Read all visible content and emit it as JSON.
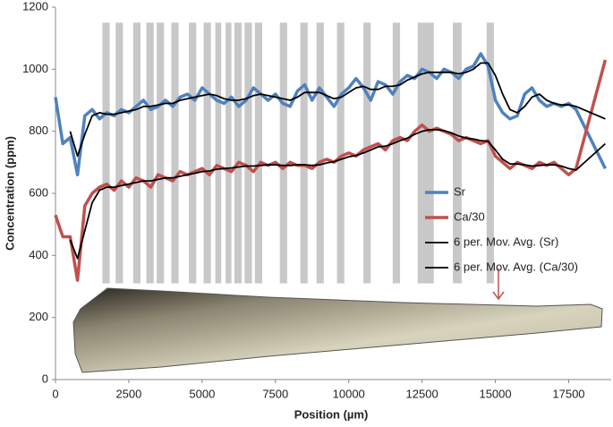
{
  "chart_data": {
    "type": "line",
    "y_label": "Concentration (ppm)",
    "x_label": "Position (µm)",
    "xlim": [
      0,
      18950
    ],
    "ylim": [
      0,
      1200
    ],
    "xticks": [
      0,
      2500,
      5000,
      7500,
      10000,
      12500,
      15000,
      17500
    ],
    "yticks": [
      0,
      200,
      400,
      600,
      800,
      1000,
      1200
    ],
    "band_color": "#c8c8c8",
    "band_yrange": [
      310,
      1150
    ],
    "bands": [
      [
        1600,
        1850
      ],
      [
        2050,
        2300
      ],
      [
        2650,
        2900
      ],
      [
        3100,
        3350
      ],
      [
        3450,
        3700
      ],
      [
        3950,
        4200
      ],
      [
        4550,
        4800
      ],
      [
        5050,
        5300
      ],
      [
        5450,
        5650
      ],
      [
        5800,
        6000
      ],
      [
        6100,
        6350
      ],
      [
        6450,
        6700
      ],
      [
        6800,
        7050
      ],
      [
        7650,
        7900
      ],
      [
        8350,
        8600
      ],
      [
        8900,
        9150
      ],
      [
        9600,
        9850
      ],
      [
        10500,
        10750
      ],
      [
        11500,
        11750
      ],
      [
        12350,
        12900
      ],
      [
        13550,
        13850
      ],
      [
        14700,
        14950
      ]
    ],
    "legend": "right",
    "x": [
      0,
      250,
      500,
      750,
      1000,
      1250,
      1500,
      1750,
      2000,
      2250,
      2500,
      2750,
      3000,
      3250,
      3500,
      3750,
      4000,
      4250,
      4500,
      4750,
      5000,
      5250,
      5500,
      5750,
      6000,
      6250,
      6500,
      6750,
      7000,
      7250,
      7500,
      7750,
      8000,
      8250,
      8500,
      8750,
      9000,
      9250,
      9500,
      9750,
      10000,
      10250,
      10500,
      10750,
      11000,
      11250,
      11500,
      11750,
      12000,
      12250,
      12500,
      12750,
      13000,
      13250,
      13500,
      13750,
      14000,
      14250,
      14500,
      14750,
      15000,
      15250,
      15500,
      15750,
      16000,
      16250,
      16500,
      16750,
      17000,
      17250,
      17500,
      17750,
      18750
    ],
    "series": [
      {
        "name": "Sr",
        "color": "#4f81bd",
        "width": 3.5,
        "values": [
          910,
          760,
          780,
          660,
          850,
          870,
          840,
          860,
          850,
          870,
          860,
          880,
          900,
          870,
          880,
          900,
          880,
          910,
          920,
          900,
          940,
          920,
          900,
          890,
          910,
          880,
          900,
          940,
          920,
          900,
          920,
          890,
          880,
          930,
          950,
          900,
          940,
          910,
          880,
          920,
          940,
          970,
          940,
          900,
          960,
          950,
          920,
          960,
          980,
          970,
          1000,
          990,
          970,
          1000,
          990,
          970,
          1000,
          1010,
          1050,
          1010,
          900,
          860,
          840,
          850,
          920,
          940,
          900,
          880,
          890,
          880,
          890,
          870,
          680
        ]
      },
      {
        "name": "Ca/30",
        "color": "#c0504d",
        "width": 3.5,
        "values": [
          530,
          460,
          460,
          320,
          560,
          600,
          620,
          630,
          610,
          640,
          620,
          650,
          640,
          620,
          660,
          650,
          640,
          670,
          660,
          670,
          680,
          660,
          690,
          680,
          670,
          700,
          690,
          670,
          700,
          690,
          700,
          680,
          700,
          690,
          690,
          680,
          700,
          710,
          700,
          720,
          730,
          720,
          740,
          750,
          760,
          740,
          770,
          780,
          770,
          800,
          820,
          800,
          810,
          800,
          790,
          770,
          780,
          770,
          760,
          770,
          720,
          700,
          680,
          700,
          690,
          680,
          700,
          690,
          700,
          680,
          660,
          680,
          1030
        ]
      },
      {
        "name": "6 per. Mov. Avg. (Sr)",
        "color": "#000000",
        "width": 1.8,
        "values": [
          null,
          null,
          800,
          720,
          790,
          850,
          860,
          855,
          855,
          860,
          865,
          870,
          880,
          880,
          885,
          890,
          890,
          900,
          905,
          910,
          915,
          920,
          915,
          905,
          900,
          900,
          905,
          915,
          920,
          915,
          910,
          905,
          900,
          910,
          925,
          925,
          925,
          915,
          905,
          910,
          925,
          940,
          945,
          935,
          935,
          945,
          945,
          950,
          965,
          975,
          985,
          990,
          990,
          990,
          990,
          985,
          990,
          1000,
          1020,
          1020,
          980,
          920,
          870,
          860,
          880,
          910,
          920,
          900,
          890,
          885,
          885,
          880,
          840
        ]
      },
      {
        "name": "6 per. Mov. Avg. (Ca/30)",
        "color": "#000000",
        "width": 1.8,
        "values": [
          null,
          null,
          450,
          390,
          480,
          570,
          610,
          620,
          620,
          625,
          630,
          635,
          640,
          640,
          645,
          650,
          650,
          655,
          660,
          665,
          670,
          672,
          678,
          680,
          682,
          685,
          688,
          688,
          690,
          692,
          692,
          690,
          690,
          692,
          692,
          690,
          692,
          698,
          702,
          710,
          718,
          722,
          730,
          740,
          750,
          752,
          760,
          770,
          778,
          790,
          800,
          805,
          805,
          802,
          795,
          785,
          778,
          775,
          770,
          768,
          740,
          710,
          695,
          695,
          692,
          688,
          690,
          692,
          692,
          688,
          680,
          675,
          760
        ]
      }
    ]
  }
}
